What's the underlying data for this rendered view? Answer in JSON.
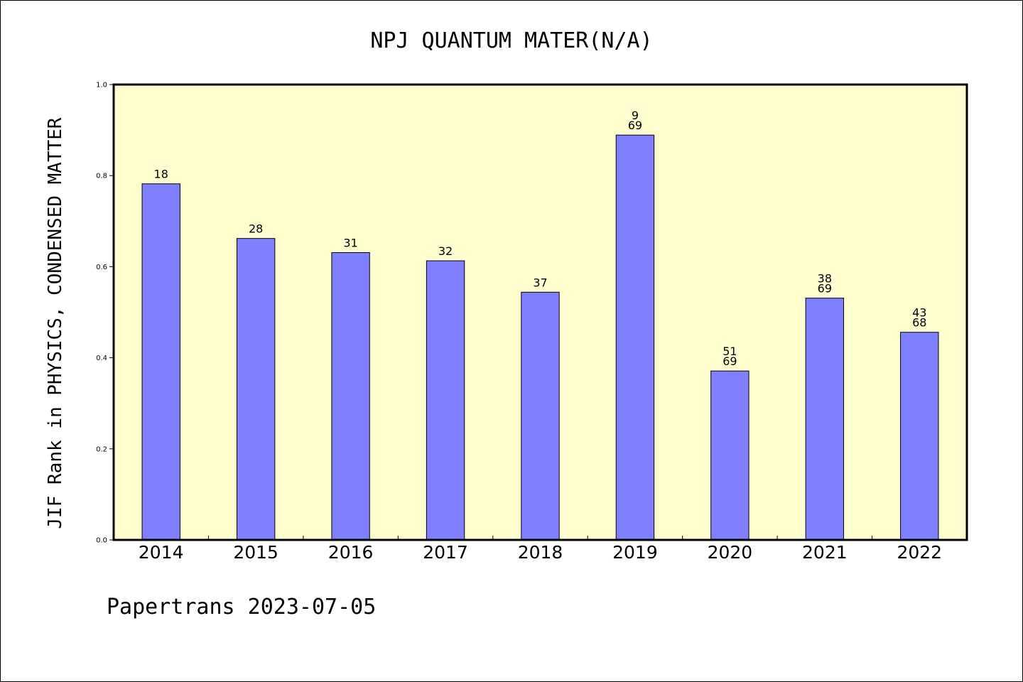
{
  "chart_data": {
    "type": "bar",
    "title": "NPJ QUANTUM MATER(N/A)",
    "ylabel": "JIF Rank in PHYSICS, CONDENSED MATTER",
    "xlabel": "",
    "ylim": [
      0,
      1.0
    ],
    "yticks": [
      "0.0",
      "0.2",
      "0.4",
      "0.6",
      "0.8",
      "1.0"
    ],
    "categories": [
      "2014",
      "2015",
      "2016",
      "2017",
      "2018",
      "2019",
      "2020",
      "2021",
      "2022"
    ],
    "values": [
      0.782,
      0.662,
      0.631,
      0.613,
      0.544,
      0.889,
      0.371,
      0.531,
      0.456
    ],
    "labels": [
      [
        "18"
      ],
      [
        "28"
      ],
      [
        "31"
      ],
      [
        "32"
      ],
      [
        "37"
      ],
      [
        "9",
        "69"
      ],
      [
        "51",
        "69"
      ],
      [
        "38",
        "69"
      ],
      [
        "43",
        "68"
      ]
    ],
    "colors": {
      "plot_background": "#ffffd0",
      "bar_fill": "#8080ff",
      "bar_stroke": "#000000"
    },
    "grid": false,
    "legend": "none"
  },
  "footer": {
    "text": "Papertrans 2023-07-05"
  }
}
